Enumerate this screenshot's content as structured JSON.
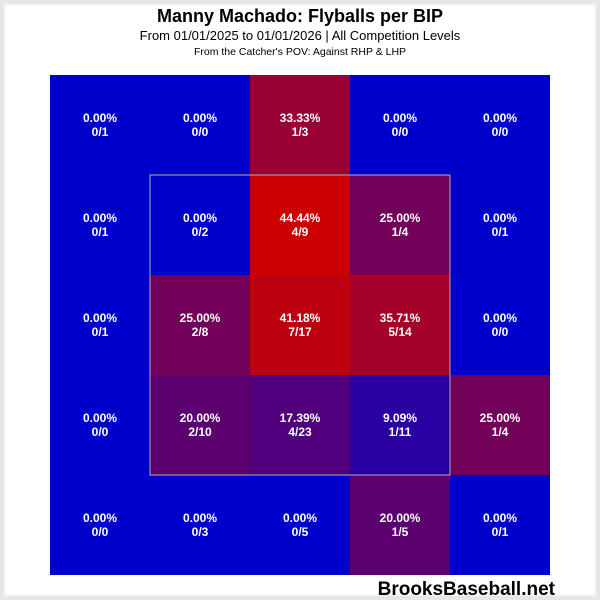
{
  "chart_data": {
    "type": "heatmap",
    "title": "Manny Machado: Flyballs per BIP",
    "subtitle": "From 01/01/2025 to 01/01/2026 | All Competition Levels",
    "note": "From the Catcher's POV:   Against RHP & LHP",
    "watermark": "BrooksBaseball.net",
    "values": [
      [
        0,
        0,
        33.33,
        0,
        0
      ],
      [
        0,
        0,
        44.44,
        25,
        0
      ],
      [
        0,
        25,
        41.18,
        35.71,
        0
      ],
      [
        0,
        20,
        17.39,
        9.09,
        25
      ],
      [
        0,
        0,
        0,
        20,
        0
      ]
    ],
    "value_labels": [
      [
        "0.00%",
        "0.00%",
        "33.33%",
        "0.00%",
        "0.00%"
      ],
      [
        "0.00%",
        "0.00%",
        "44.44%",
        "25.00%",
        "0.00%"
      ],
      [
        "0.00%",
        "25.00%",
        "41.18%",
        "35.71%",
        "0.00%"
      ],
      [
        "0.00%",
        "20.00%",
        "17.39%",
        "9.09%",
        "25.00%"
      ],
      [
        "0.00%",
        "0.00%",
        "0.00%",
        "20.00%",
        "0.00%"
      ]
    ],
    "counts": [
      [
        "0/1",
        "0/0",
        "1/3",
        "0/0",
        "0/0"
      ],
      [
        "0/1",
        "0/2",
        "4/9",
        "1/4",
        "0/1"
      ],
      [
        "0/1",
        "2/8",
        "7/17",
        "5/14",
        "0/0"
      ],
      [
        "0/0",
        "2/10",
        "4/23",
        "1/11",
        "1/4"
      ],
      [
        "0/0",
        "0/3",
        "0/5",
        "1/5",
        "0/1"
      ]
    ],
    "colors": [
      [
        "#0000cc",
        "#0000cc",
        "#990033",
        "#0000cc",
        "#0000cc"
      ],
      [
        "#0000cc",
        "#0000cc",
        "#cc0000",
        "#730059",
        "#0000cc"
      ],
      [
        "#0000cc",
        "#730059",
        "#bd000f",
        "#a40028",
        "#0000cc"
      ],
      [
        "#0000cc",
        "#5c0070",
        "#50007c",
        "#2a00a2",
        "#730059"
      ],
      [
        "#0000cc",
        "#0000cc",
        "#0000cc",
        "#5c0070",
        "#0000cc"
      ]
    ]
  }
}
